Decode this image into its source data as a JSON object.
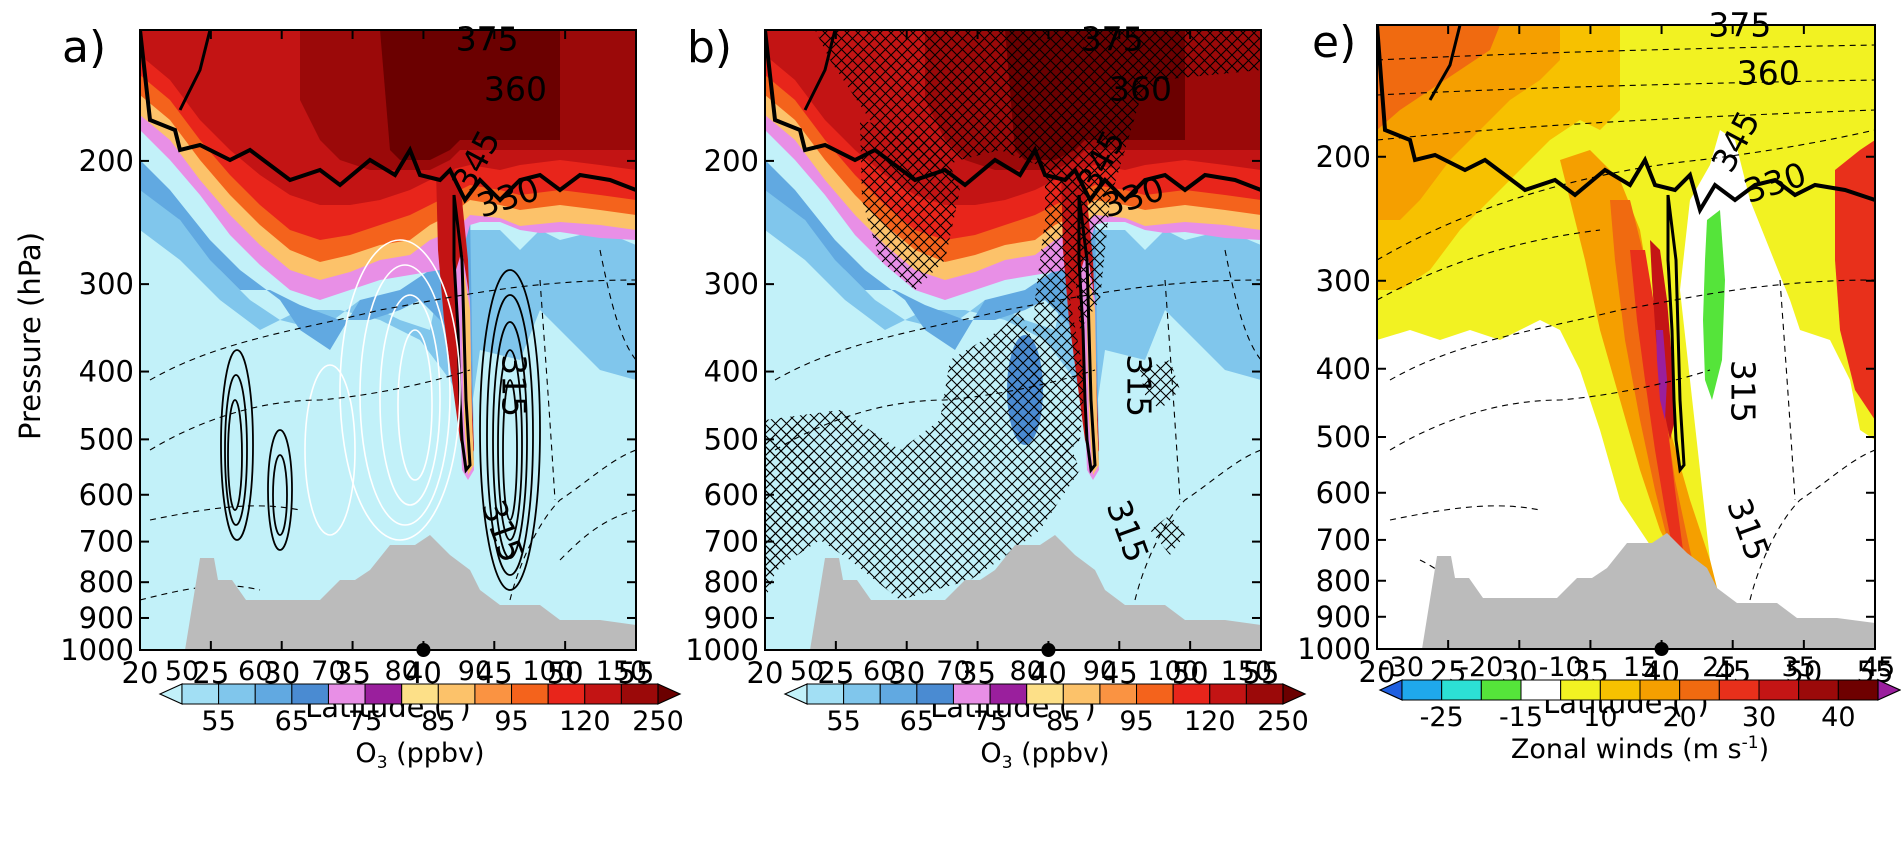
{
  "chart_data": [
    {
      "panel": "a)",
      "type": "contour",
      "xlabel": "Latitude (°)",
      "ylabel": "Pressure (hPa)",
      "xlim": [
        20,
        55
      ],
      "xticks": [
        20,
        25,
        30,
        35,
        40,
        45,
        50,
        55
      ],
      "ylim": [
        1000,
        130
      ],
      "yscale": "log",
      "yticks": [
        1000,
        900,
        800,
        700,
        600,
        500,
        400,
        300,
        200
      ],
      "marker_lat": 40,
      "contour_labels": [
        {
          "text": "375",
          "lat": 44.5,
          "p": 139
        },
        {
          "text": "360",
          "lat": 46.5,
          "p": 164
        },
        {
          "text": "345",
          "lat": 43.8,
          "p": 207
        },
        {
          "text": "330",
          "lat": 46.0,
          "p": 234
        },
        {
          "text": "315",
          "lat": 46.3,
          "p": 433
        },
        {
          "text": "315",
          "lat": 45.5,
          "p": 700
        }
      ],
      "colorbar": {
        "title_main": "O",
        "title_sub": "3",
        "title_rest": " (ppbv)",
        "upper_labels": [
          "50",
          "60",
          "70",
          "80",
          "90",
          "100",
          "150"
        ],
        "lower_labels": [
          "55",
          "65",
          "75",
          "85",
          "95",
          "120",
          "250"
        ],
        "colors": [
          "#c2f1f9",
          "#a2dff4",
          "#80c6ec",
          "#61a9e1",
          "#4a8bd2",
          "#e88fe6",
          "#9a1f9d",
          "#fde088",
          "#fcc26a",
          "#fa9342",
          "#f4631c",
          "#e8251b",
          "#c31414",
          "#9b0909",
          "#6b0000"
        ]
      }
    },
    {
      "panel": "b)",
      "type": "contour",
      "xlabel": "Latitude (°)",
      "xlim": [
        20,
        55
      ],
      "xticks": [
        20,
        25,
        30,
        35,
        40,
        45,
        50,
        55
      ],
      "ylim": [
        1000,
        130
      ],
      "yscale": "log",
      "yticks": [
        1000,
        900,
        800,
        700,
        600,
        500,
        400,
        300,
        200
      ],
      "marker_lat": 40,
      "contour_labels": [
        {
          "text": "375",
          "lat": 44.5,
          "p": 139
        },
        {
          "text": "360",
          "lat": 46.5,
          "p": 164
        },
        {
          "text": "345",
          "lat": 43.8,
          "p": 207
        },
        {
          "text": "330",
          "lat": 46.0,
          "p": 234
        },
        {
          "text": "315",
          "lat": 46.3,
          "p": 433
        },
        {
          "text": "315",
          "lat": 45.5,
          "p": 700
        }
      ],
      "colorbar": {
        "title_main": "O",
        "title_sub": "3",
        "title_rest": " (ppbv)",
        "upper_labels": [
          "50",
          "60",
          "70",
          "80",
          "90",
          "100",
          "150"
        ],
        "lower_labels": [
          "55",
          "65",
          "75",
          "85",
          "95",
          "120",
          "250"
        ],
        "colors": [
          "#c2f1f9",
          "#a2dff4",
          "#80c6ec",
          "#61a9e1",
          "#4a8bd2",
          "#e88fe6",
          "#9a1f9d",
          "#fde088",
          "#fcc26a",
          "#fa9342",
          "#f4631c",
          "#e8251b",
          "#c31414",
          "#9b0909",
          "#6b0000"
        ]
      }
    },
    {
      "panel": "e)",
      "type": "contour",
      "xlabel": "Latitude (°)",
      "xlim": [
        20,
        55
      ],
      "xticks": [
        20,
        25,
        30,
        35,
        40,
        45,
        50,
        55
      ],
      "ylim": [
        1000,
        130
      ],
      "yscale": "log",
      "yticks": [
        1000,
        900,
        800,
        700,
        600,
        500,
        400,
        300,
        200
      ],
      "marker_lat": 40,
      "contour_labels": [
        {
          "text": "375",
          "lat": 45.5,
          "p": 135
        },
        {
          "text": "360",
          "lat": 47.5,
          "p": 158
        },
        {
          "text": "345",
          "lat": 45.3,
          "p": 197
        },
        {
          "text": "330",
          "lat": 48.0,
          "p": 226
        },
        {
          "text": "315",
          "lat": 45.6,
          "p": 445
        },
        {
          "text": "315",
          "lat": 46.0,
          "p": 700
        }
      ],
      "colorbar": {
        "title_main": "Zonal winds (m s",
        "title_sup": "-1",
        "title_rest": ")",
        "upper_labels": [
          "-30",
          "-20",
          "-10",
          "15",
          "25",
          "35",
          "45",
          "55"
        ],
        "lower_labels": [
          "-25",
          "-15",
          "10",
          "20",
          "30",
          "40",
          "50"
        ],
        "colors": [
          "#1f5fe0",
          "#1fa8ec",
          "#2ce0d5",
          "#55e43a",
          "#ffffff",
          "#f2f222",
          "#f7c100",
          "#f59f00",
          "#f06a10",
          "#e8301b",
          "#c41515",
          "#9b0a0a",
          "#6e0000",
          "#9a1f9d"
        ]
      }
    }
  ]
}
